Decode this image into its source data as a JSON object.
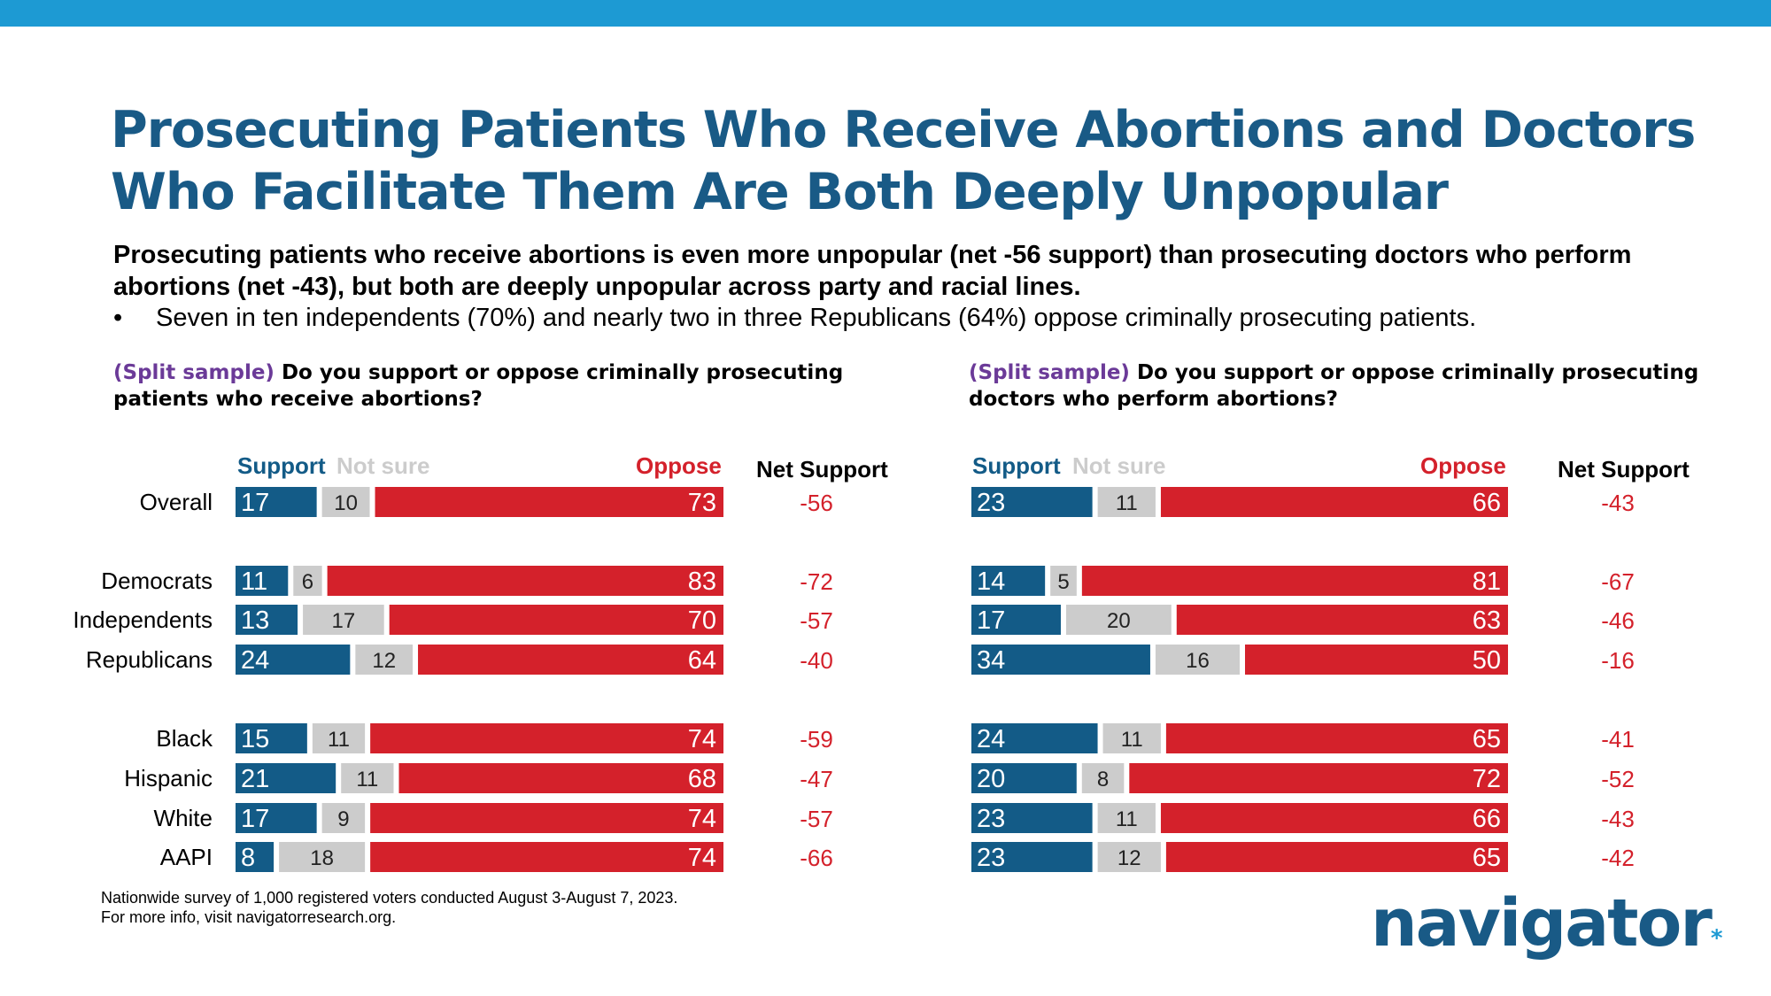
{
  "colors": {
    "topbar": "#1d9ad3",
    "title": "#195a86",
    "support": "#135b87",
    "not_sure": "#cccccc",
    "oppose": "#d4212b",
    "net": "#d4212b",
    "tag": "#6b3a98"
  },
  "title": "Prosecuting Patients Who Receive Abortions and Doctors Who Facilitate Them Are Both Deeply Unpopular",
  "subtitle": "Prosecuting patients who receive abortions is even more unpopular (net -56 support) than prosecuting doctors who perform abortions (net -43), but both are deeply unpopular across party and racial lines.",
  "bullet": "Seven in ten independents (70%) and nearly two in three Republicans (64%) oppose criminally prosecuting patients.",
  "bullet_symbol": "•",
  "legend": {
    "support": "Support",
    "not_sure": "Not sure",
    "oppose": "Oppose",
    "net": "Net Support"
  },
  "footnote": {
    "line1": "Nationwide survey of 1,000 registered voters conducted August 3-August 7, 2023.",
    "line2": "For more info, visit navigatorresearch.org."
  },
  "logo": {
    "text": "navigator",
    "mark": "*"
  },
  "chart_data": [
    {
      "type": "bar",
      "stacked": true,
      "orientation": "horizontal",
      "question_tag": "(Split sample)",
      "question": "Do you support or oppose criminally prosecuting patients who receive abortions?",
      "categories": [
        "Overall",
        "Democrats",
        "Independents",
        "Republicans",
        "Black",
        "Hispanic",
        "White",
        "AAPI"
      ],
      "series": [
        {
          "name": "Support",
          "values": [
            17,
            11,
            13,
            24,
            15,
            21,
            17,
            8
          ]
        },
        {
          "name": "Not sure",
          "values": [
            10,
            6,
            17,
            12,
            11,
            11,
            9,
            18
          ]
        },
        {
          "name": "Oppose",
          "values": [
            73,
            83,
            70,
            64,
            74,
            68,
            74,
            74
          ]
        }
      ],
      "net_support": [
        "-56",
        "-72",
        "-57",
        "-40",
        "-59",
        "-47",
        "-57",
        "-66"
      ],
      "xlim": [
        0,
        100
      ]
    },
    {
      "type": "bar",
      "stacked": true,
      "orientation": "horizontal",
      "question_tag": "(Split sample)",
      "question": "Do you support or oppose criminally prosecuting doctors who perform abortions?",
      "categories": [
        "Overall",
        "Democrats",
        "Independents",
        "Republicans",
        "Black",
        "Hispanic",
        "White",
        "AAPI"
      ],
      "series": [
        {
          "name": "Support",
          "values": [
            23,
            14,
            17,
            34,
            24,
            20,
            23,
            23
          ]
        },
        {
          "name": "Not sure",
          "values": [
            11,
            5,
            20,
            16,
            11,
            8,
            11,
            12
          ]
        },
        {
          "name": "Oppose",
          "values": [
            66,
            81,
            63,
            50,
            65,
            72,
            66,
            65
          ]
        }
      ],
      "net_support": [
        "-43",
        "-67",
        "-46",
        "-16",
        "-41",
        "-52",
        "-43",
        "-42"
      ],
      "xlim": [
        0,
        100
      ]
    }
  ]
}
